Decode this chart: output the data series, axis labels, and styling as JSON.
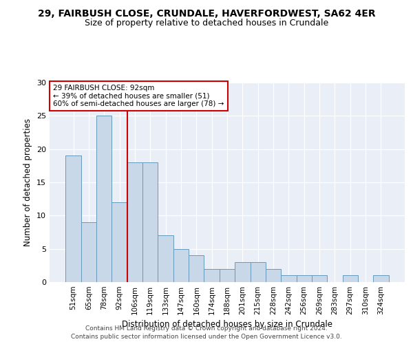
{
  "title1": "29, FAIRBUSH CLOSE, CRUNDALE, HAVERFORDWEST, SA62 4ER",
  "title2": "Size of property relative to detached houses in Crundale",
  "xlabel": "Distribution of detached houses by size in Crundale",
  "ylabel": "Number of detached properties",
  "categories": [
    "51sqm",
    "65sqm",
    "78sqm",
    "92sqm",
    "106sqm",
    "119sqm",
    "133sqm",
    "147sqm",
    "160sqm",
    "174sqm",
    "188sqm",
    "201sqm",
    "215sqm",
    "228sqm",
    "242sqm",
    "256sqm",
    "269sqm",
    "283sqm",
    "297sqm",
    "310sqm",
    "324sqm"
  ],
  "values": [
    19,
    9,
    25,
    12,
    18,
    18,
    7,
    5,
    4,
    2,
    2,
    3,
    3,
    2,
    1,
    1,
    1,
    0,
    1,
    0,
    1
  ],
  "bar_color": "#c8d8e8",
  "bar_edge_color": "#6699bb",
  "vline_x": 3.5,
  "vline_color": "#cc0000",
  "annotation_text": "29 FAIRBUSH CLOSE: 92sqm\n← 39% of detached houses are smaller (51)\n60% of semi-detached houses are larger (78) →",
  "annotation_box_color": "#cc0000",
  "ylim": [
    0,
    30
  ],
  "yticks": [
    0,
    5,
    10,
    15,
    20,
    25,
    30
  ],
  "background_color": "#eaeff7",
  "footer_line1": "Contains HM Land Registry data © Crown copyright and database right 2024.",
  "footer_line2": "Contains public sector information licensed under the Open Government Licence v3.0."
}
